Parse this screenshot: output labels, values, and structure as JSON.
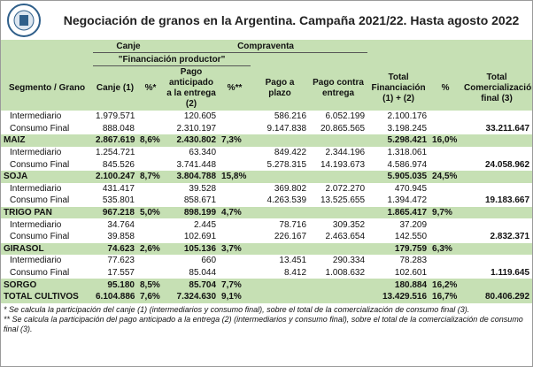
{
  "title": "Negociación de granos en la Argentina. Campaña 2021/22. Hasta agosto 2022",
  "header": {
    "group_canje": "Canje",
    "group_compraventa": "Compraventa",
    "group_financiacion": "\"Financiación productor\"",
    "columns": [
      "Segmento / Grano",
      "Canje (1)",
      "%*",
      "Pago anticipado a la entrega (2)",
      "%**",
      "Pago a plazo",
      "Pago contra entrega",
      "Total Financiación (1) + (2)",
      "%",
      "Total Comercialización final (3)"
    ]
  },
  "crops": [
    {
      "rows": [
        [
          "Intermediario",
          "1.979.571",
          null,
          "120.605",
          null,
          "586.216",
          "6.052.199",
          "2.100.176",
          null,
          null
        ],
        [
          "Consumo Final",
          "888.048",
          null,
          "2.310.197",
          null,
          "9.147.838",
          "20.865.565",
          "3.198.245",
          null,
          "33.211.647"
        ]
      ],
      "total": [
        "MAIZ",
        "2.867.619",
        "8,6%",
        "2.430.802",
        "7,3%",
        null,
        null,
        "5.298.421",
        "16,0%",
        null
      ]
    },
    {
      "rows": [
        [
          "Intermediario",
          "1.254.721",
          null,
          "63.340",
          null,
          "849.422",
          "2.344.196",
          "1.318.061",
          null,
          null
        ],
        [
          "Consumo Final",
          "845.526",
          null,
          "3.741.448",
          null,
          "5.278.315",
          "14.193.673",
          "4.586.974",
          null,
          "24.058.962"
        ]
      ],
      "total": [
        "SOJA",
        "2.100.247",
        "8,7%",
        "3.804.788",
        "15,8%",
        null,
        null,
        "5.905.035",
        "24,5%",
        null
      ]
    },
    {
      "rows": [
        [
          "Intermediario",
          "431.417",
          null,
          "39.528",
          null,
          "369.802",
          "2.072.270",
          "470.945",
          null,
          null
        ],
        [
          "Consumo Final",
          "535.801",
          null,
          "858.671",
          null,
          "4.263.539",
          "13.525.655",
          "1.394.472",
          null,
          "19.183.667"
        ]
      ],
      "total": [
        "TRIGO PAN",
        "967.218",
        "5,0%",
        "898.199",
        "4,7%",
        null,
        null,
        "1.865.417",
        "9,7%",
        null
      ]
    },
    {
      "rows": [
        [
          "Intermediario",
          "34.764",
          null,
          "2.445",
          null,
          "78.716",
          "309.352",
          "37.209",
          null,
          null
        ],
        [
          "Consumo Final",
          "39.858",
          null,
          "102.691",
          null,
          "226.167",
          "2.463.654",
          "142.550",
          null,
          "2.832.371"
        ]
      ],
      "total": [
        "GIRASOL",
        "74.623",
        "2,6%",
        "105.136",
        "3,7%",
        null,
        null,
        "179.759",
        "6,3%",
        null
      ]
    },
    {
      "rows": [
        [
          "Intermediario",
          "77.623",
          null,
          "660",
          null,
          "13.451",
          "290.334",
          "78.283",
          null,
          null
        ],
        [
          "Consumo Final",
          "17.557",
          null,
          "85.044",
          null,
          "8.412",
          "1.008.632",
          "102.601",
          null,
          "1.119.645"
        ]
      ],
      "total": [
        "SORGO",
        "95.180",
        "8,5%",
        "85.704",
        "7,7%",
        null,
        null,
        "180.884",
        "16,2%",
        null
      ]
    }
  ],
  "grand_total": [
    "TOTAL CULTIVOS",
    "6.104.886",
    "7,6%",
    "7.324.630",
    "9,1%",
    null,
    null,
    "13.429.516",
    "16,7%",
    "80.406.292"
  ],
  "footnotes": [
    "* Se calcula la participación del canje (1) (intermediarios y consumo final), sobre el total de la comercialización de consumo final (3).",
    "** Se calcula la participación del pago anticipado a la entrega (2) (intermediarios y consumo final), sobre el total de la comercialización de consumo final (3)."
  ]
}
